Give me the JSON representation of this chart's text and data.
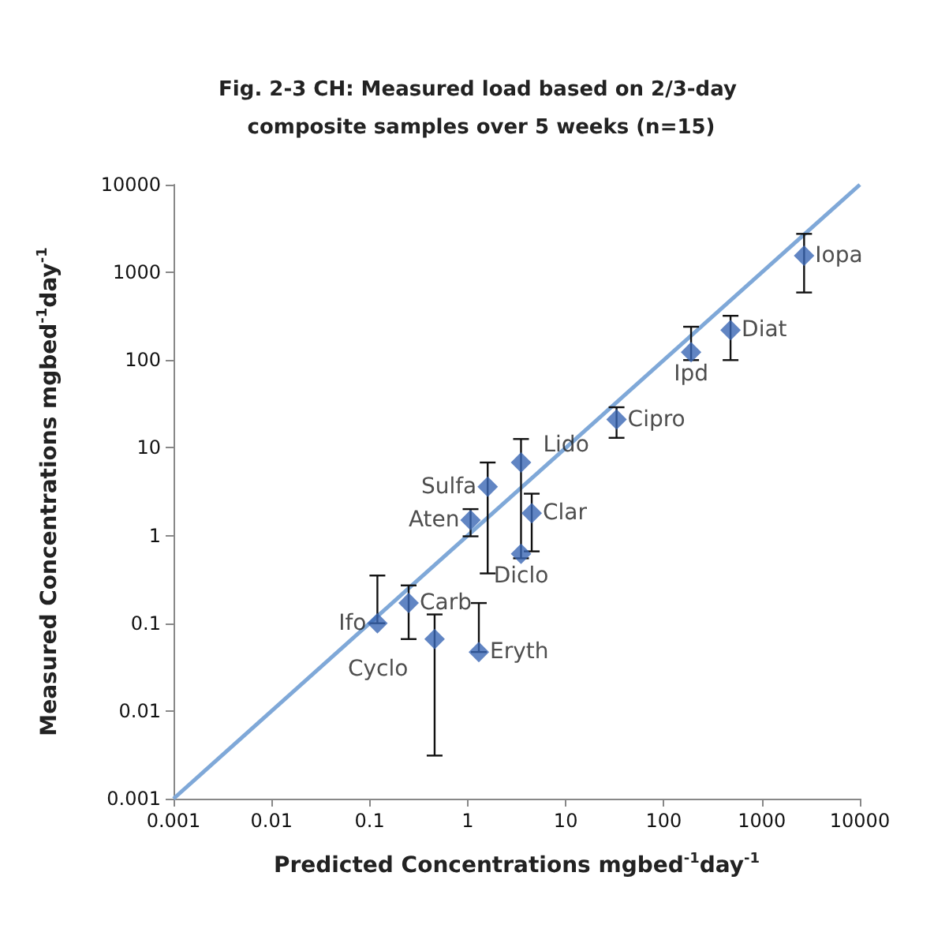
{
  "chart_data": {
    "type": "scatter",
    "title": "Fig. 2-3 CH: Measured load based on 2/3-day composite samples over 5 weeks (n=15)",
    "xlabel": "Predicted Concentrations mgbed$^{-1}$day$^{-1}$",
    "ylabel": "Measured Concentrations mgbed$^{-1}$day$^{-1}$",
    "log": "xy",
    "xlim": [
      0.001,
      10000
    ],
    "ylim": [
      0.001,
      10000
    ],
    "xticks": [
      0.001,
      0.01,
      0.1,
      1,
      10,
      100,
      1000,
      10000
    ],
    "yticks": [
      0.001,
      0.01,
      0.1,
      1,
      10,
      100,
      1000,
      10000
    ],
    "grid": false,
    "marker": "diamond",
    "series": [
      {
        "color": "#3a66b4",
        "x": [
          2700,
          480,
          190,
          33,
          3.5,
          1.6,
          1.07,
          4.5,
          3.5,
          0.12,
          0.25,
          0.46,
          1.3
        ],
        "values": [
          1550,
          220,
          123,
          21,
          6.8,
          3.6,
          1.5,
          1.8,
          0.62,
          0.1,
          0.17,
          0.066,
          0.047
        ],
        "errors": [
          [
            590,
            2750
          ],
          [
            100,
            320
          ],
          [
            100,
            240
          ],
          [
            13,
            29
          ],
          [
            0.55,
            12.6
          ],
          [
            0.37,
            6.8
          ],
          [
            0.98,
            2.0
          ],
          [
            0.66,
            3.0
          ],
          null,
          [
            0.1,
            0.35
          ],
          [
            0.066,
            0.27
          ],
          [
            0.0031,
            0.126
          ],
          [
            0.047,
            0.17
          ]
        ]
      },
      {
        "type": "line",
        "color": "#7fa8d8",
        "marker": "none",
        "x": [
          0.001,
          10000
        ],
        "values": [
          0.001,
          10000
        ]
      }
    ],
    "annotations": [
      {
        "text": "Iopa",
        "x": 2700,
        "y": 1550
      },
      {
        "text": "Diat",
        "x": 480,
        "y": 220
      },
      {
        "text": "Ipd",
        "x": 190,
        "y": 123
      },
      {
        "text": "Cipro",
        "x": 33,
        "y": 21
      },
      {
        "text": "Lido",
        "x": 3.5,
        "y": 6.8
      },
      {
        "text": "Sulfa",
        "x": 1.6,
        "y": 3.6
      },
      {
        "text": "Aten",
        "x": 1.07,
        "y": 1.5
      },
      {
        "text": "Clar",
        "x": 4.5,
        "y": 1.8
      },
      {
        "text": "Diclo",
        "x": 3.5,
        "y": 0.62
      },
      {
        "text": "Ifo",
        "x": 0.12,
        "y": 0.1
      },
      {
        "text": "Carb",
        "x": 0.25,
        "y": 0.17
      },
      {
        "text": "Cyclo",
        "x": 0.46,
        "y": 0.066
      },
      {
        "text": "Eryth",
        "x": 1.3,
        "y": 0.047
      }
    ]
  }
}
